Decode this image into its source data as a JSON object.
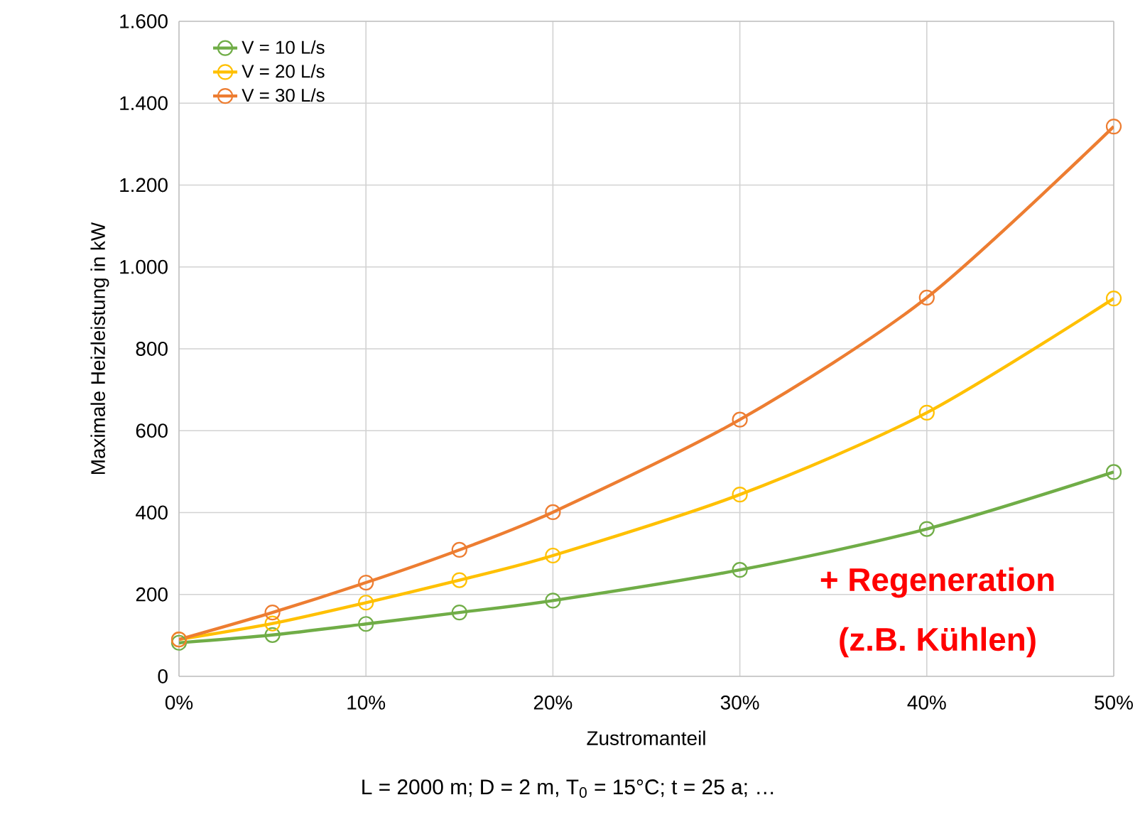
{
  "chart_data": {
    "type": "line",
    "xlabel": "Zustromanteil",
    "ylabel": "Maximale Heizleistung in kW",
    "x": [
      0,
      5,
      10,
      15,
      20,
      30,
      40,
      50
    ],
    "series": [
      {
        "name": "V = 10 L/s",
        "color": "#70ad47",
        "values": [
          82,
          101,
          128,
          156,
          185,
          260,
          360,
          499
        ]
      },
      {
        "name": "V = 20 L/s",
        "color": "#ffc000",
        "values": [
          90,
          129,
          180,
          235,
          295,
          444,
          644,
          923
        ]
      },
      {
        "name": "V = 30 L/s",
        "color": "#ed7d31",
        "values": [
          90,
          156,
          229,
          309,
          401,
          627,
          925,
          1343
        ]
      }
    ],
    "xlim": [
      0,
      50
    ],
    "ylim": [
      0,
      1600
    ],
    "xticks": [
      {
        "value": 0,
        "label": "0%"
      },
      {
        "value": 10,
        "label": "10%"
      },
      {
        "value": 20,
        "label": "20%"
      },
      {
        "value": 30,
        "label": "30%"
      },
      {
        "value": 40,
        "label": "40%"
      },
      {
        "value": 50,
        "label": "50%"
      }
    ],
    "yticks": [
      0,
      200,
      400,
      600,
      800,
      {
        "value": 1000,
        "label": "1.000"
      },
      {
        "value": 1200,
        "label": "1.200"
      },
      {
        "value": 1400,
        "label": "1.400"
      },
      {
        "value": 1600,
        "label": "1.600"
      }
    ],
    "grid": true,
    "legend": "top left",
    "marker": "circle",
    "line_style": "solid",
    "annotations": [
      "+ Regeneration",
      "(z.B. Kühlen)",
      "L = 2000 m; D = 2 m, T$_{0}$ = 15°C; t = 25 a; …"
    ]
  }
}
